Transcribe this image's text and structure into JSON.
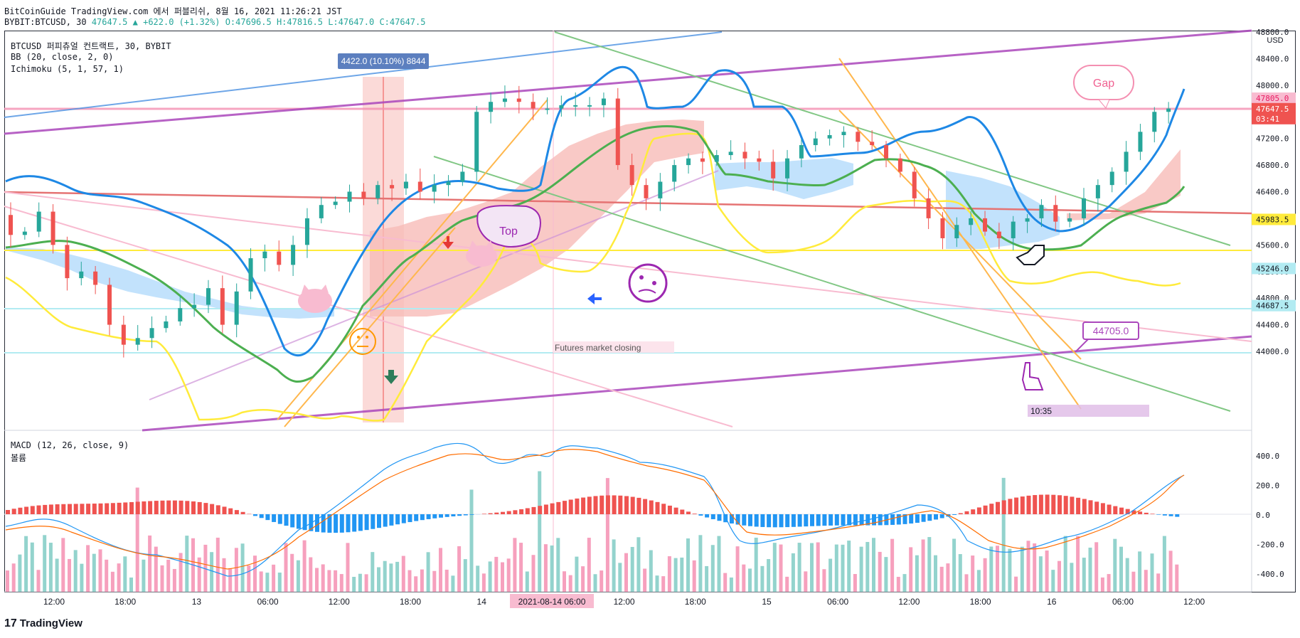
{
  "header": {
    "line1": "BitCoinGuide TradingView.com 에서 퍼블리쉬, 8월 16, 2021 11:26:21 JST",
    "symbol": "BYBIT:BTCUSD, 30",
    "last": "47647.5",
    "change": "▲ +622.0 (+1.32%)",
    "ohlc": "O:47696.5 H:47816.5 L:47647.0 C:47647.5"
  },
  "legend": {
    "title": "BTCUSD 퍼피츄얼 컨트랙트, 30, BYBIT",
    "bb": "BB (20, close, 2, 0)",
    "ichimoku": "Ichimoku (5, 1, 57, 1)",
    "macd": "MACD (12, 26, close, 9)",
    "volume": "볼륨"
  },
  "annotations": {
    "measure": "4422.0 (10.10%) 8844",
    "top": "Top",
    "gap": "Gap",
    "futures": "Futures market closing",
    "price_callout": "44705.0",
    "time_box": "10:35"
  },
  "footer": {
    "brand": "TradingView",
    "logo": "17"
  },
  "colors": {
    "up": "#26a69a",
    "down": "#ef5350",
    "bb": "#2196f3",
    "ichimoku_base": "#4caf50",
    "ichimoku_conv": "#ffeb3b",
    "macd": "#2196f3",
    "signal": "#ff6d00"
  },
  "chart_data": {
    "type": "candlestick",
    "price_axis": {
      "unit": "USD",
      "ticks": [
        "48800.0",
        "48400.0",
        "48000.0",
        "47600.0",
        "47200.0",
        "46800.0",
        "46400.0",
        "46000.0",
        "45600.0",
        "45200.0",
        "44800.0",
        "44400.0",
        "44000.0"
      ],
      "labels": [
        {
          "text": "47805.0",
          "color": "#f8bbd0",
          "text_color": "#e91e63"
        },
        {
          "text": "47647.5",
          "color": "#ef5350",
          "text_color": "#ffffff"
        },
        {
          "text": "03:41",
          "color": "#ef5350",
          "text_color": "#ffffff"
        },
        {
          "text": "45983.5",
          "color": "#ffeb3b",
          "text_color": "#131722"
        },
        {
          "text": "45246.0",
          "color": "#b2ebf2",
          "text_color": "#131722"
        },
        {
          "text": "44687.5",
          "color": "#b2ebf2",
          "text_color": "#131722"
        }
      ]
    },
    "macd_axis": {
      "ticks": [
        "400.0",
        "200.0",
        "0.0",
        "-200.0",
        "-400.0"
      ]
    },
    "time_axis": {
      "ticks": [
        "12:00",
        "18:00",
        "13",
        "06:00",
        "12:00",
        "18:00",
        "14",
        "2021-08-14",
        "06:00",
        "12:00",
        "18:00",
        "15",
        "06:00",
        "12:00",
        "18:00",
        "16",
        "06:00",
        "12:00"
      ],
      "highlight": "2021-08-14  06:00"
    },
    "close_path": [
      46050,
      45750,
      45800,
      46100,
      45600,
      45100,
      45200,
      45000,
      44400,
      44100,
      44200,
      44350,
      44450,
      44650,
      44700,
      44950,
      44400,
      44900,
      45400,
      45500,
      45300,
      45600,
      46000,
      46200,
      46250,
      46400,
      46300,
      46500,
      46450,
      46550,
      46400,
      46500,
      46550,
      46700,
      47600,
      47750,
      47800,
      47750,
      47650,
      47650,
      47700,
      47700,
      47700,
      47800,
      46800,
      46500,
      46300,
      46550,
      46800,
      46900,
      46850,
      46950,
      47000,
      46900,
      46850,
      46600,
      46900,
      47100,
      47200,
      47250,
      47300,
      47150,
      47100,
      46900,
      46700,
      46300,
      46000,
      45700,
      45900,
      46000,
      45800,
      45700,
      45950,
      46000,
      46200,
      45950,
      46000,
      46300,
      46500,
      46700,
      47000,
      47300,
      47600,
      47650
    ]
  }
}
